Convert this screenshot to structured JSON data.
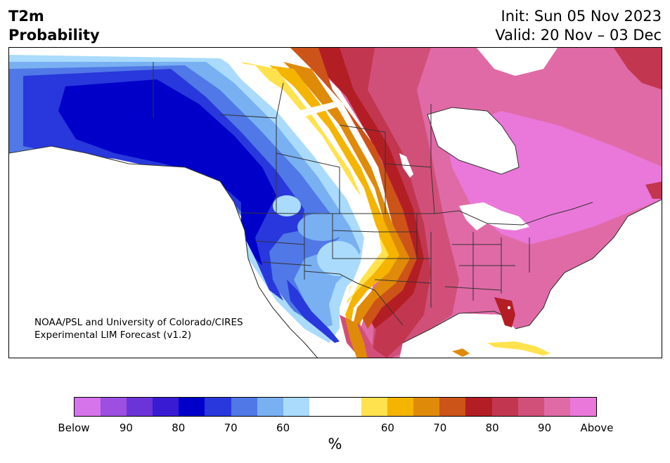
{
  "header": {
    "title_line1": "T2m",
    "title_line2": "Probability",
    "init": "Init: Sun 05 Nov 2023",
    "valid": "Valid: 20 Nov – 03 Dec"
  },
  "credit": {
    "line1": "NOAA/PSL and University of Colorado/CIRES",
    "line2": "Experimental LIM Forecast (v1.2)"
  },
  "colorbar": {
    "colors": [
      "#d674ec",
      "#9c4fe0",
      "#6b34d8",
      "#3a1bd4",
      "#0000c8",
      "#2838dc",
      "#5078e6",
      "#78b0f2",
      "#aadbfc",
      "#ffffff",
      "#ffffff",
      "#ffe24e",
      "#f4b400",
      "#e08a0a",
      "#cc5418",
      "#b31e24",
      "#c33650",
      "#d1507a",
      "#e06aa6",
      "#ea78da"
    ],
    "tick_labels": [
      "Below",
      "90",
      "80",
      "70",
      "60",
      "60",
      "70",
      "80",
      "90",
      "Above"
    ],
    "unit": "%"
  },
  "map_colors": {
    "deep_blue": "#0000c8",
    "blue": "#2838dc",
    "mid_blue": "#5078e6",
    "light_blue": "#78b0f2",
    "pale_blue": "#aadbfc",
    "yellow": "#ffe24e",
    "gold": "#f4b400",
    "orange": "#e08a0a",
    "rust": "#cc5418",
    "red": "#b31e24",
    "crimson": "#c33650",
    "rose": "#d1507a",
    "pink": "#e06aa6",
    "magenta": "#ea78da"
  }
}
